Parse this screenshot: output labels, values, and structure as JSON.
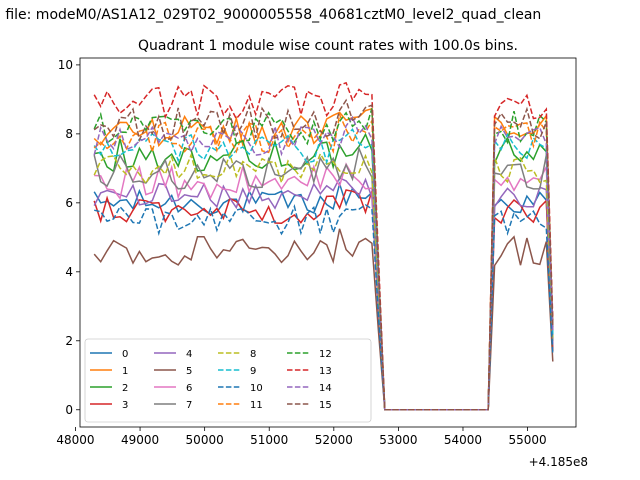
{
  "suptitle": "n file: modeM0/AS1A12_029T02_9000005558_40681cztM0_level2_quad_clean",
  "chart_data": {
    "type": "line",
    "title": "Quadrant 1 module wise count rates with 100.0s bins.",
    "xlabel": "",
    "ylabel": "",
    "x_offset_label": "+4.185e8",
    "xlim": [
      48070,
      55750
    ],
    "ylim": [
      -0.5,
      10.2
    ],
    "xticks": [
      48000,
      49000,
      50000,
      51000,
      52000,
      53000,
      54000,
      55000
    ],
    "xtick_labels": [
      "48000",
      "49000",
      "50000",
      "51000",
      "52000",
      "53000",
      "54000",
      "55000"
    ],
    "yticks": [
      0,
      2,
      4,
      6,
      8,
      10
    ],
    "ytick_labels": [
      "0",
      "2",
      "4",
      "6",
      "8",
      "10"
    ],
    "grid": false,
    "legend_position": "lower-left",
    "legend_columns": 4,
    "x_start": 48290,
    "x_step": 100,
    "gap": {
      "first_zero_x": 52790,
      "last_zero_x": 54390
    },
    "series": [
      {
        "name": "0",
        "color": "#1f77b4",
        "style": "solid",
        "level": 6.0,
        "noise": 0.18,
        "end": 1.7
      },
      {
        "name": "1",
        "color": "#ff7f0e",
        "style": "solid",
        "level": 8.1,
        "noise": 0.22,
        "end": 2.3
      },
      {
        "name": "2",
        "color": "#2ca02c",
        "style": "solid",
        "level": 7.4,
        "noise": 0.25,
        "end": 2.1
      },
      {
        "name": "3",
        "color": "#d62728",
        "style": "solid",
        "level": 5.8,
        "noise": 0.2,
        "end": 1.7
      },
      {
        "name": "4",
        "color": "#9467bd",
        "style": "solid",
        "level": 6.2,
        "noise": 0.18,
        "end": 1.9
      },
      {
        "name": "5",
        "color": "#8c564b",
        "style": "solid",
        "level": 4.6,
        "noise": 0.22,
        "end": 1.4
      },
      {
        "name": "6",
        "color": "#e377c2",
        "style": "solid",
        "level": 6.6,
        "noise": 0.25,
        "end": 2.0
      },
      {
        "name": "7",
        "color": "#7f7f7f",
        "style": "solid",
        "level": 6.9,
        "noise": 0.25,
        "end": 2.0
      },
      {
        "name": "8",
        "color": "#bcbd22",
        "style": "dashed",
        "level": 7.0,
        "noise": 0.22,
        "end": 2.1
      },
      {
        "name": "9",
        "color": "#17becf",
        "style": "dashed",
        "level": 7.6,
        "noise": 0.22,
        "end": 2.2
      },
      {
        "name": "10",
        "color": "#1f77b4",
        "style": "dashed",
        "level": 5.5,
        "noise": 0.2,
        "end": 1.6
      },
      {
        "name": "11",
        "color": "#ff7f0e",
        "style": "dashed",
        "level": 7.9,
        "noise": 0.22,
        "end": 2.4
      },
      {
        "name": "12",
        "color": "#2ca02c",
        "style": "dashed",
        "level": 8.2,
        "noise": 0.25,
        "end": 2.4
      },
      {
        "name": "13",
        "color": "#d62728",
        "style": "dashed",
        "level": 8.9,
        "noise": 0.25,
        "end": 2.6
      },
      {
        "name": "14",
        "color": "#9467bd",
        "style": "dashed",
        "level": 7.8,
        "noise": 0.22,
        "end": 2.3
      },
      {
        "name": "15",
        "color": "#8c564b",
        "style": "dashed",
        "level": 8.3,
        "noise": 0.25,
        "end": 2.4
      }
    ]
  }
}
